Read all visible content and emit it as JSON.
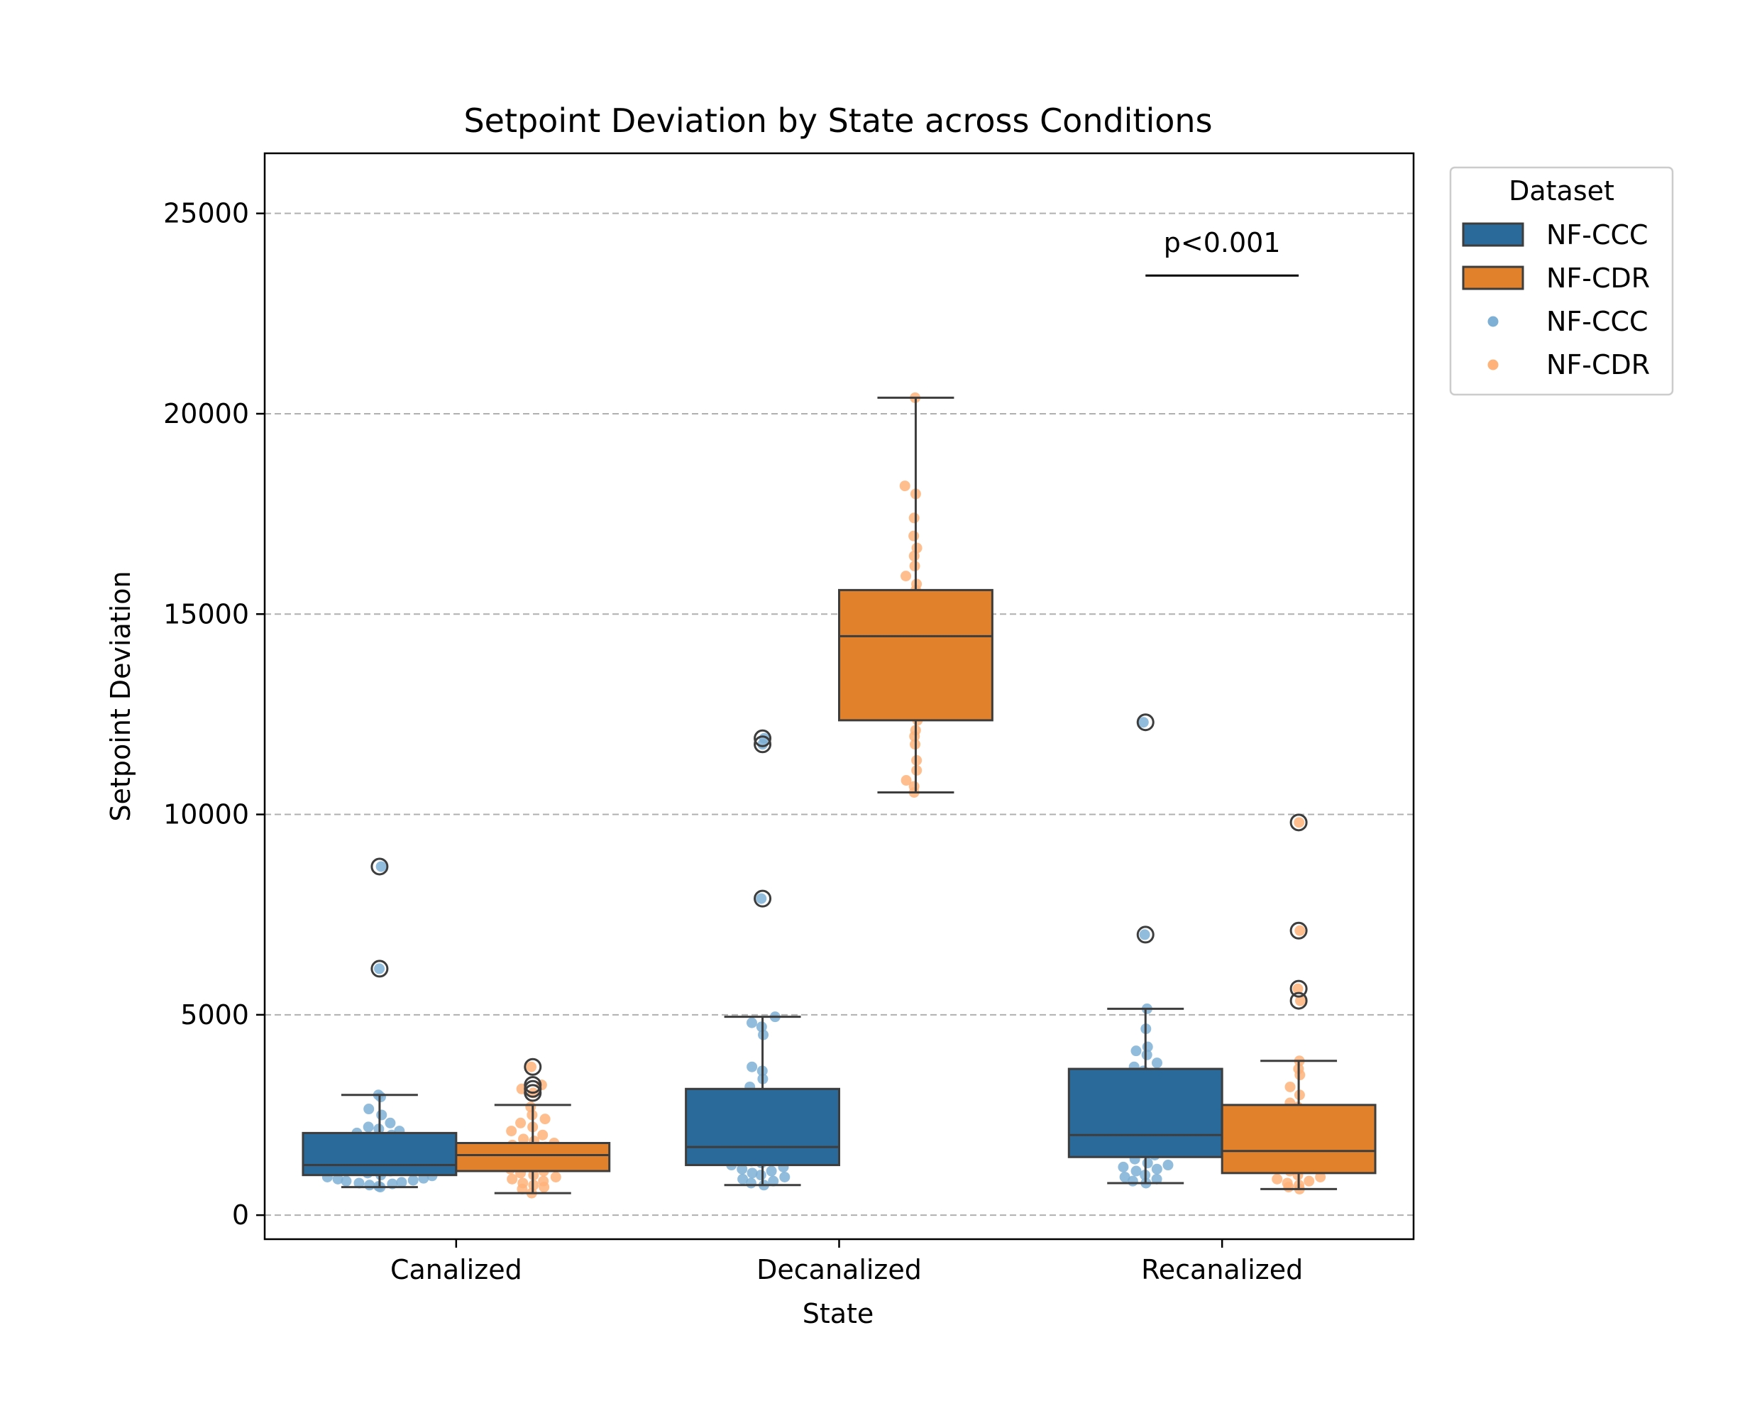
{
  "chart_data": {
    "type": "box",
    "title": "Setpoint Deviation by State across Conditions",
    "xlabel": "State",
    "ylabel": "Setpoint Deviation",
    "ylim": [
      -600,
      26500
    ],
    "yticks": [
      0,
      5000,
      10000,
      15000,
      20000,
      25000
    ],
    "grid": "horizontal dashed",
    "categories": [
      "Canalized",
      "Decanalized",
      "Recanalized"
    ],
    "legend": {
      "title": "Dataset",
      "placement": "outside top-right",
      "entries": [
        {
          "label": "NF-CCC",
          "kind": "box",
          "color": "#2a6a9b"
        },
        {
          "label": "NF-CDR",
          "kind": "box",
          "color": "#e1812c"
        },
        {
          "label": "NF-CCC",
          "kind": "point",
          "color": "#7eb0d5"
        },
        {
          "label": "NF-CDR",
          "kind": "point",
          "color": "#ffb37a"
        }
      ]
    },
    "series": [
      {
        "name": "NF-CCC",
        "box_color": "#2a6a9b",
        "point_color": "#7eb0d5",
        "boxes": [
          {
            "category": "Canalized",
            "whisker_low": 700,
            "q1": 1000,
            "median": 1250,
            "q3": 2050,
            "whisker_high": 3000,
            "outliers": [
              6150,
              8700
            ]
          },
          {
            "category": "Decanalized",
            "whisker_low": 750,
            "q1": 1250,
            "median": 1700,
            "q3": 3150,
            "whisker_high": 4950,
            "outliers": [
              7900,
              11750,
              11900
            ]
          },
          {
            "category": "Recanalized",
            "whisker_low": 800,
            "q1": 1450,
            "median": 2000,
            "q3": 3650,
            "whisker_high": 5150,
            "outliers": [
              7000,
              12300
            ]
          }
        ],
        "points": [
          {
            "category": "Canalized",
            "values": [
              700,
              720,
              750,
              780,
              800,
              820,
              850,
              870,
              900,
              920,
              950,
              980,
              1000,
              1050,
              1100,
              1150,
              1200,
              1250,
              1300,
              1350,
              1400,
              1450,
              1500,
              1550,
              1600,
              1650,
              1700,
              1800,
              1850,
              1900,
              2000,
              2050,
              2100,
              2150,
              2200,
              2300,
              2500,
              2650,
              2950,
              3000,
              6150,
              8700
            ]
          },
          {
            "category": "Decanalized",
            "values": [
              750,
              800,
              850,
              900,
              950,
              1000,
              1050,
              1100,
              1150,
              1200,
              1250,
              1300,
              1350,
              1400,
              1450,
              1500,
              1550,
              1600,
              1650,
              1700,
              1750,
              1800,
              1900,
              2000,
              2100,
              2200,
              2300,
              2400,
              2500,
              2600,
              2800,
              3000,
              3200,
              3400,
              3600,
              3700,
              4500,
              4700,
              4800,
              4950,
              7900,
              11750,
              11900
            ]
          },
          {
            "category": "Recanalized",
            "values": [
              800,
              850,
              900,
              950,
              1000,
              1100,
              1150,
              1200,
              1250,
              1300,
              1400,
              1500,
              1600,
              1700,
              1800,
              1900,
              2000,
              2100,
              2200,
              2300,
              2400,
              2500,
              2600,
              2700,
              2800,
              2900,
              3000,
              3200,
              3400,
              3600,
              3700,
              3800,
              4000,
              4100,
              4200,
              4650,
              5150,
              7000,
              12300
            ]
          }
        ]
      },
      {
        "name": "NF-CDR",
        "box_color": "#e1812c",
        "point_color": "#ffb37a",
        "boxes": [
          {
            "category": "Canalized",
            "whisker_low": 550,
            "q1": 1100,
            "median": 1500,
            "q3": 1800,
            "whisker_high": 2750,
            "outliers": [
              3050,
              3150,
              3250,
              3700
            ]
          },
          {
            "category": "Decanalized",
            "whisker_low": 10550,
            "q1": 12350,
            "median": 14450,
            "q3": 15600,
            "whisker_high": 20400,
            "outliers": []
          },
          {
            "category": "Recanalized",
            "whisker_low": 650,
            "q1": 1050,
            "median": 1600,
            "q3": 2750,
            "whisker_high": 3850,
            "outliers": [
              5350,
              5650,
              7100,
              9800
            ]
          }
        ],
        "points": [
          {
            "category": "Canalized",
            "values": [
              550,
              650,
              700,
              750,
              800,
              850,
              900,
              950,
              1000,
              1050,
              1100,
              1150,
              1200,
              1250,
              1300,
              1350,
              1400,
              1450,
              1500,
              1550,
              1600,
              1650,
              1700,
              1750,
              1800,
              1850,
              1900,
              2000,
              2100,
              2200,
              2300,
              2400,
              2500,
              2700,
              3050,
              3150,
              3250,
              3700
            ]
          },
          {
            "category": "Decanalized",
            "values": [
              10550,
              10700,
              10850,
              11100,
              11350,
              11750,
              11950,
              12100,
              12350,
              12600,
              12900,
              13150,
              13300,
              13500,
              13650,
              13800,
              14000,
              14150,
              14300,
              14450,
              14600,
              14750,
              14900,
              15100,
              15350,
              15600,
              15750,
              15950,
              16200,
              16450,
              16650,
              16950,
              17400,
              18000,
              18200,
              20400
            ]
          },
          {
            "category": "Recanalized",
            "values": [
              650,
              700,
              750,
              800,
              850,
              900,
              950,
              1000,
              1100,
              1200,
              1300,
              1400,
              1500,
              1600,
              1700,
              1800,
              1900,
              2000,
              2100,
              2200,
              2300,
              2400,
              2500,
              2600,
              2700,
              2800,
              3000,
              3200,
              3500,
              3650,
              3850,
              5350,
              5650,
              7100,
              9800
            ]
          }
        ]
      }
    ],
    "annotations": [
      {
        "text": "p<0.001",
        "category": "Recanalized",
        "y": 23450
      }
    ]
  }
}
